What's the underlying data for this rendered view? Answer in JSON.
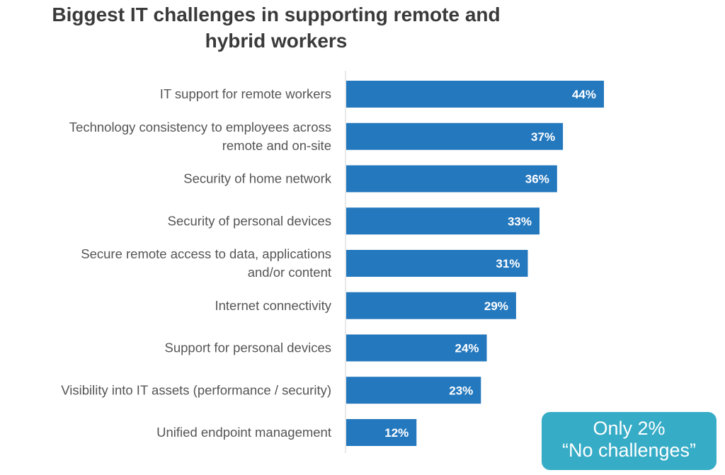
{
  "chart_data": {
    "type": "bar",
    "orientation": "horizontal",
    "title_lines": [
      "Biggest IT challenges in supporting remote and",
      "hybrid workers"
    ],
    "categories": [
      [
        "IT support for remote workers"
      ],
      [
        "Technology consistency to employees across",
        "remote and on-site"
      ],
      [
        "Security of home network"
      ],
      [
        "Security of personal devices"
      ],
      [
        "Secure remote access to data, applications",
        "and/or content"
      ],
      [
        "Internet connectivity"
      ],
      [
        "Support for personal devices"
      ],
      [
        "Visibility into IT assets (performance / security)"
      ],
      [
        "Unified endpoint management"
      ]
    ],
    "values": [
      44,
      37,
      36,
      33,
      31,
      29,
      24,
      23,
      12
    ],
    "value_labels": [
      "44%",
      "37%",
      "36%",
      "33%",
      "31%",
      "29%",
      "24%",
      "23%",
      "12%"
    ],
    "unit": "%",
    "xlim": [
      0,
      44
    ],
    "bar_color": "#2478be",
    "grid": false
  },
  "callout": {
    "line1": "Only 2%",
    "line2": "“No challenges”",
    "color": "#36acc6"
  }
}
